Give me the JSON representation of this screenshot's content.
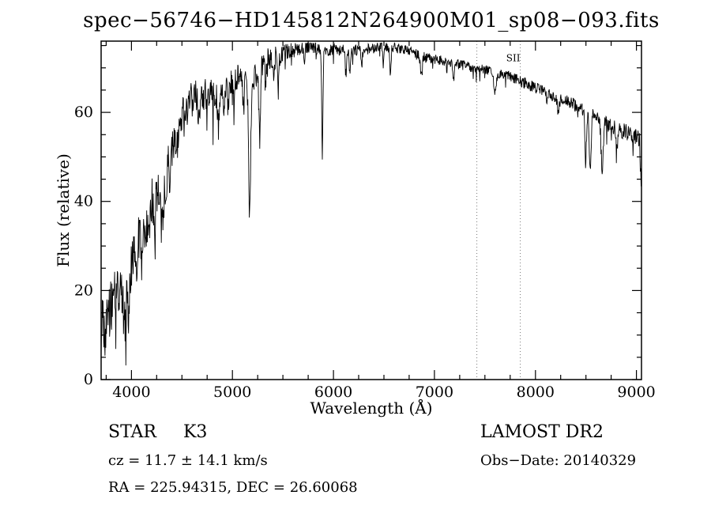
{
  "title": "spec−56746−HD145812N264900M01_sp08−093.fits",
  "chart_data": {
    "type": "line",
    "xlabel": "Wavelength (Å)",
    "ylabel": "Flux (relative)",
    "xlim": [
      3700,
      9050
    ],
    "ylim": [
      0,
      76
    ],
    "xticks": [
      4000,
      5000,
      6000,
      7000,
      8000,
      9000
    ],
    "yticks": [
      0,
      20,
      40,
      60
    ],
    "x_minor_step": 250,
    "y_minor_step": 5,
    "grid": false,
    "line_color": "#000000",
    "frame_color": "#000000",
    "reference_lines": {
      "positions": [
        7420,
        7850
      ],
      "style": "dotted",
      "color": "#777777",
      "label": "SII",
      "label_x": 7780,
      "label_y_flux": 71.5
    },
    "continuum": [
      [
        3700,
        10
      ],
      [
        3750,
        14
      ],
      [
        3800,
        16
      ],
      [
        3850,
        19
      ],
      [
        3900,
        21
      ],
      [
        3950,
        22
      ],
      [
        4000,
        26
      ],
      [
        4050,
        30
      ],
      [
        4100,
        33
      ],
      [
        4150,
        36
      ],
      [
        4200,
        40
      ],
      [
        4250,
        42
      ],
      [
        4300,
        42
      ],
      [
        4350,
        47
      ],
      [
        4400,
        52
      ],
      [
        4450,
        56
      ],
      [
        4500,
        59
      ],
      [
        4550,
        61
      ],
      [
        4600,
        63
      ],
      [
        4650,
        64
      ],
      [
        4700,
        64
      ],
      [
        4750,
        64
      ],
      [
        4800,
        64
      ],
      [
        4850,
        64
      ],
      [
        4900,
        65
      ],
      [
        4950,
        66
      ],
      [
        5000,
        67
      ],
      [
        5050,
        68
      ],
      [
        5100,
        68
      ],
      [
        5150,
        67
      ],
      [
        5200,
        67
      ],
      [
        5250,
        69
      ],
      [
        5300,
        71
      ],
      [
        5350,
        72
      ],
      [
        5400,
        72
      ],
      [
        5450,
        73
      ],
      [
        5500,
        73
      ],
      [
        5600,
        74
      ],
      [
        5700,
        75
      ],
      [
        5800,
        75
      ],
      [
        5900,
        74
      ],
      [
        6000,
        74
      ],
      [
        6100,
        74
      ],
      [
        6200,
        74
      ],
      [
        6300,
        74
      ],
      [
        6400,
        74.5
      ],
      [
        6500,
        75
      ],
      [
        6600,
        74.5
      ],
      [
        6700,
        74
      ],
      [
        6800,
        73.5
      ],
      [
        6900,
        72.5
      ],
      [
        7000,
        72
      ],
      [
        7100,
        71.5
      ],
      [
        7200,
        71
      ],
      [
        7300,
        70.5
      ],
      [
        7400,
        70
      ],
      [
        7500,
        69.5
      ],
      [
        7600,
        69
      ],
      [
        7700,
        68.5
      ],
      [
        7800,
        67.5
      ],
      [
        7900,
        66.5
      ],
      [
        8000,
        65.5
      ],
      [
        8100,
        64.5
      ],
      [
        8200,
        63.5
      ],
      [
        8300,
        62.5
      ],
      [
        8400,
        61.5
      ],
      [
        8500,
        60
      ],
      [
        8600,
        59
      ],
      [
        8700,
        57.5
      ],
      [
        8800,
        56.5
      ],
      [
        8900,
        55.5
      ],
      [
        9000,
        54.5
      ],
      [
        9030,
        54
      ],
      [
        9050,
        49
      ]
    ],
    "absorption_features": [
      [
        3933,
        10,
        10
      ],
      [
        3968,
        10,
        10
      ],
      [
        4045,
        5,
        8
      ],
      [
        4101,
        6,
        8
      ],
      [
        4144,
        5,
        8
      ],
      [
        4227,
        8,
        8
      ],
      [
        4300,
        7,
        14
      ],
      [
        4340,
        5,
        8
      ],
      [
        4383,
        6,
        8
      ],
      [
        4455,
        4,
        8
      ],
      [
        4531,
        4,
        8
      ],
      [
        4668,
        5,
        8
      ],
      [
        4861,
        7,
        8
      ],
      [
        4920,
        5,
        8
      ],
      [
        4957,
        4,
        8
      ],
      [
        5015,
        4,
        8
      ],
      [
        5110,
        6,
        8
      ],
      [
        5170,
        30,
        10
      ],
      [
        5270,
        16,
        8
      ],
      [
        5328,
        6,
        6
      ],
      [
        5406,
        5,
        6
      ],
      [
        5455,
        8,
        6
      ],
      [
        5710,
        4,
        6
      ],
      [
        5890,
        24,
        6
      ],
      [
        6122,
        5,
        7
      ],
      [
        6162,
        5,
        7
      ],
      [
        6280,
        3,
        6
      ],
      [
        6495,
        4,
        7
      ],
      [
        6563,
        6,
        7
      ],
      [
        6870,
        4,
        10
      ],
      [
        7190,
        3,
        10
      ],
      [
        7600,
        4,
        12
      ],
      [
        8226,
        3,
        10
      ],
      [
        8498,
        10,
        8
      ],
      [
        8542,
        13,
        9
      ],
      [
        8662,
        12,
        9
      ],
      [
        8805,
        5,
        8
      ],
      [
        9045,
        6,
        6
      ]
    ],
    "noise_amplitude": [
      [
        3700,
        8
      ],
      [
        3760,
        8
      ],
      [
        3820,
        7
      ],
      [
        3880,
        6.5
      ],
      [
        3950,
        6
      ],
      [
        4050,
        6
      ],
      [
        4150,
        5.5
      ],
      [
        4250,
        5
      ],
      [
        4400,
        4.5
      ],
      [
        4600,
        4
      ],
      [
        4800,
        3.6
      ],
      [
        5000,
        3.2
      ],
      [
        5150,
        3
      ],
      [
        5300,
        2.6
      ],
      [
        5500,
        2.2
      ],
      [
        5700,
        1.8
      ],
      [
        5900,
        1.5
      ],
      [
        6100,
        1.3
      ],
      [
        6400,
        1.2
      ],
      [
        6800,
        1.1
      ],
      [
        7200,
        1.1
      ],
      [
        7600,
        1.2
      ],
      [
        8000,
        1.3
      ],
      [
        8400,
        1.5
      ],
      [
        8800,
        1.7
      ],
      [
        9050,
        2
      ]
    ],
    "noise_seed": 20140329
  },
  "annotations": {
    "object_type": "STAR",
    "subclass": "K3",
    "survey": "LAMOST DR2",
    "cz": "cz = 11.7 ± 14.1 km/s",
    "obs_date": "Obs−Date: 20140329",
    "coords": "RA = 225.94315, DEC = 26.60068"
  }
}
